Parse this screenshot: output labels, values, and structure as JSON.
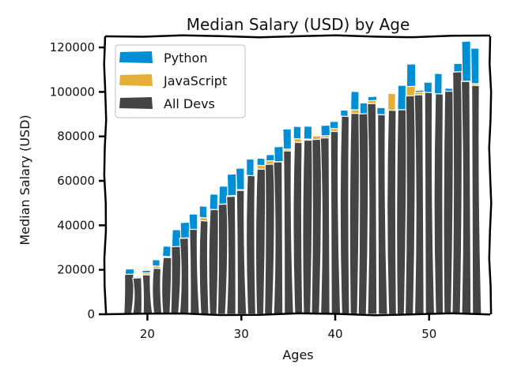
{
  "chart_data": {
    "type": "bar",
    "title": "Median Salary (USD) by Age",
    "xlabel": "Ages",
    "ylabel": "Median Salary (USD)",
    "xlim": [
      15.5,
      56.5
    ],
    "ylim": [
      0,
      125000
    ],
    "x_ticks": [
      20,
      30,
      40,
      50
    ],
    "y_ticks": [
      0,
      20000,
      40000,
      60000,
      80000,
      100000,
      120000
    ],
    "legend_position": "top-left",
    "x": [
      18,
      19,
      20,
      21,
      22,
      23,
      24,
      25,
      26,
      27,
      28,
      29,
      30,
      31,
      32,
      33,
      34,
      35,
      36,
      37,
      38,
      39,
      40,
      41,
      42,
      43,
      44,
      45,
      46,
      47,
      48,
      49,
      50,
      51,
      52,
      53,
      54,
      55
    ],
    "series": [
      {
        "name": "Python",
        "color": "#008fd5",
        "values": [
          20046,
          17100,
          20000,
          24744,
          30500,
          37732,
          41247,
          45372,
          48876,
          53850,
          57287,
          63016,
          65998,
          70003,
          70000,
          71496,
          75370,
          83640,
          84666,
          84392,
          78254,
          85000,
          87038,
          91991,
          100000,
          94796,
          97962,
          93302,
          99240,
          102736,
          112285,
          100771,
          104708,
          108423,
          101407,
          112542,
          122870,
          120000
        ]
      },
      {
        "name": "JavaScript",
        "color": "#e5ae38",
        "values": [
          16446,
          16791,
          18942,
          21780,
          25704,
          29000,
          34372,
          37810,
          43515,
          46823,
          49293,
          53437,
          56373,
          62375,
          66674,
          68745,
          68746,
          74583,
          79000,
          78508,
          79996,
          80403,
          83820,
          88833,
          91660,
          87892,
          96243,
          90000,
          99313,
          91660,
          102264,
          100000,
          100000,
          91660,
          99240,
          108000,
          105000,
          104000
        ]
      },
      {
        "name": "All Devs",
        "color": "#444444",
        "values": [
          17784,
          16500,
          18012,
          20628,
          25206,
          30252,
          34368,
          38496,
          42000,
          46752,
          49320,
          53200,
          56000,
          62316,
          64928,
          67317,
          68748,
          73752,
          77232,
          78000,
          78508,
          79536,
          82488,
          88935,
          90000,
          90056,
          95000,
          90000,
          91633,
          91660,
          98150,
          98964,
          100000,
          98988,
          100000,
          108923,
          105000,
          103117
        ]
      }
    ]
  }
}
